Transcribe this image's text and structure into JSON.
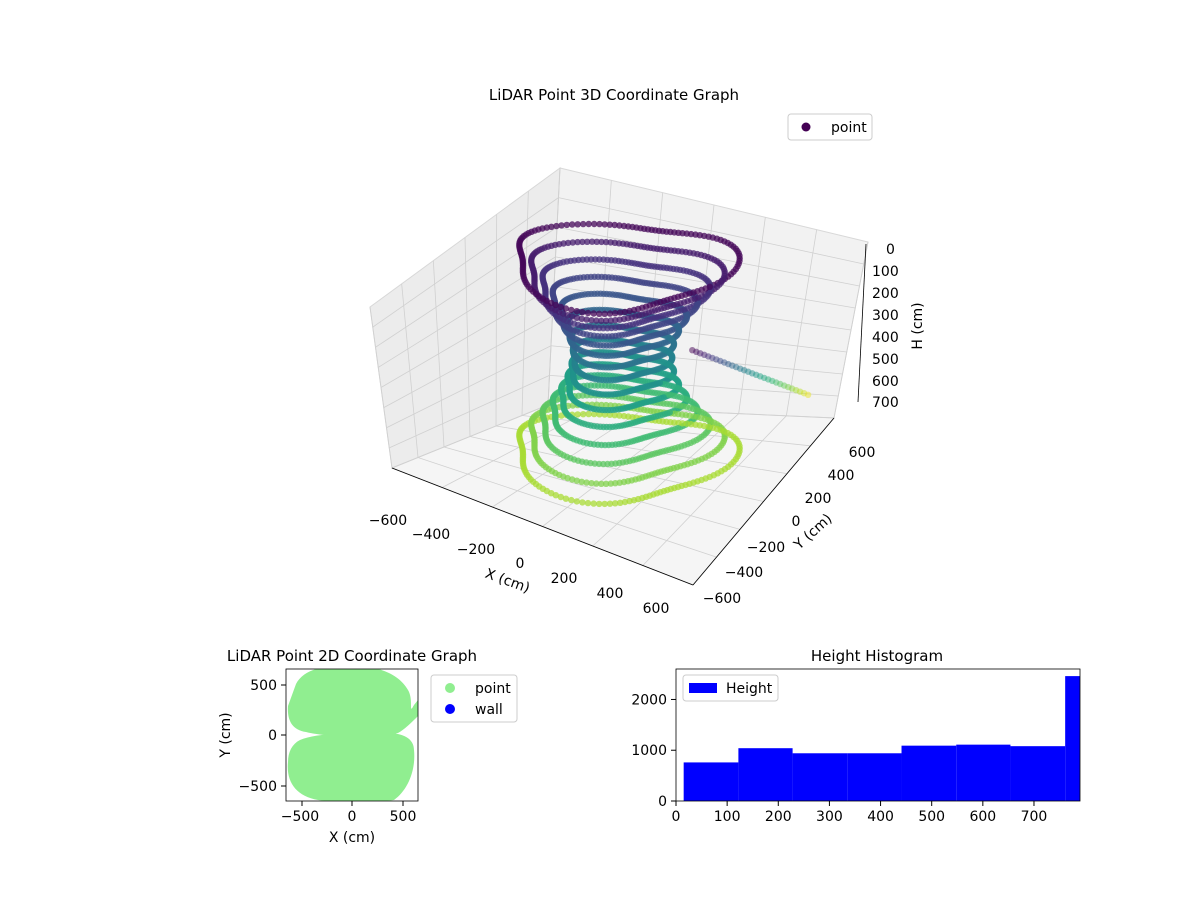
{
  "chart_data": [
    {
      "type": "scatter3d",
      "title": "LiDAR Point 3D Coordinate Graph",
      "xlabel": "X (cm)",
      "ylabel": "Y (cm)",
      "zlabel": "H (cm)",
      "xticks": [
        "−600",
        "−400",
        "−200",
        "0",
        "200",
        "400",
        "600"
      ],
      "yticks": [
        "−600",
        "−400",
        "−200",
        "0",
        "200",
        "400",
        "600"
      ],
      "zticks": [
        "0",
        "100",
        "200",
        "300",
        "400",
        "500",
        "600",
        "700"
      ],
      "xlim": [
        -650,
        650
      ],
      "ylim": [
        -650,
        650
      ],
      "zlim": [
        0,
        750
      ],
      "z_inverted": true,
      "colormap": "viridis",
      "legend": {
        "location": "upper-right",
        "entries": [
          {
            "label": "point",
            "color": "#440154"
          }
        ]
      }
    },
    {
      "type": "scatter",
      "title": "LiDAR Point 2D Coordinate Graph",
      "xlabel": "X (cm)",
      "ylabel": "Y (cm)",
      "xticks": [
        "−500",
        "0",
        "500"
      ],
      "yticks": [
        "−500",
        "0",
        "500"
      ],
      "xlim": [
        -650,
        650
      ],
      "ylim": [
        -650,
        650
      ],
      "legend": {
        "location": "outside-right",
        "entries": [
          {
            "label": "point",
            "color": "#90ee90"
          },
          {
            "label": "wall",
            "color": "#0000ff"
          }
        ]
      }
    },
    {
      "type": "bar",
      "title": "Height Histogram",
      "xlabel": "",
      "ylabel": "",
      "xticks": [
        "0",
        "100",
        "200",
        "300",
        "400",
        "500",
        "600",
        "700"
      ],
      "yticks": [
        "0",
        "1000",
        "2000"
      ],
      "xlim": [
        0,
        790
      ],
      "ylim": [
        0,
        2600
      ],
      "bins": [
        {
          "x0": 15,
          "x1": 122,
          "count": 760
        },
        {
          "x0": 122,
          "x1": 228,
          "count": 1040
        },
        {
          "x0": 228,
          "x1": 335,
          "count": 940
        },
        {
          "x0": 335,
          "x1": 441,
          "count": 940
        },
        {
          "x0": 441,
          "x1": 548,
          "count": 1090
        },
        {
          "x0": 548,
          "x1": 654,
          "count": 1110
        },
        {
          "x0": 654,
          "x1": 761,
          "count": 1080
        },
        {
          "x0": 761,
          "x1": 790,
          "count": 2460
        }
      ],
      "color": "#0000ff",
      "legend": {
        "location": "upper-left",
        "entries": [
          {
            "label": "Height",
            "color": "#0000ff"
          }
        ]
      }
    }
  ]
}
